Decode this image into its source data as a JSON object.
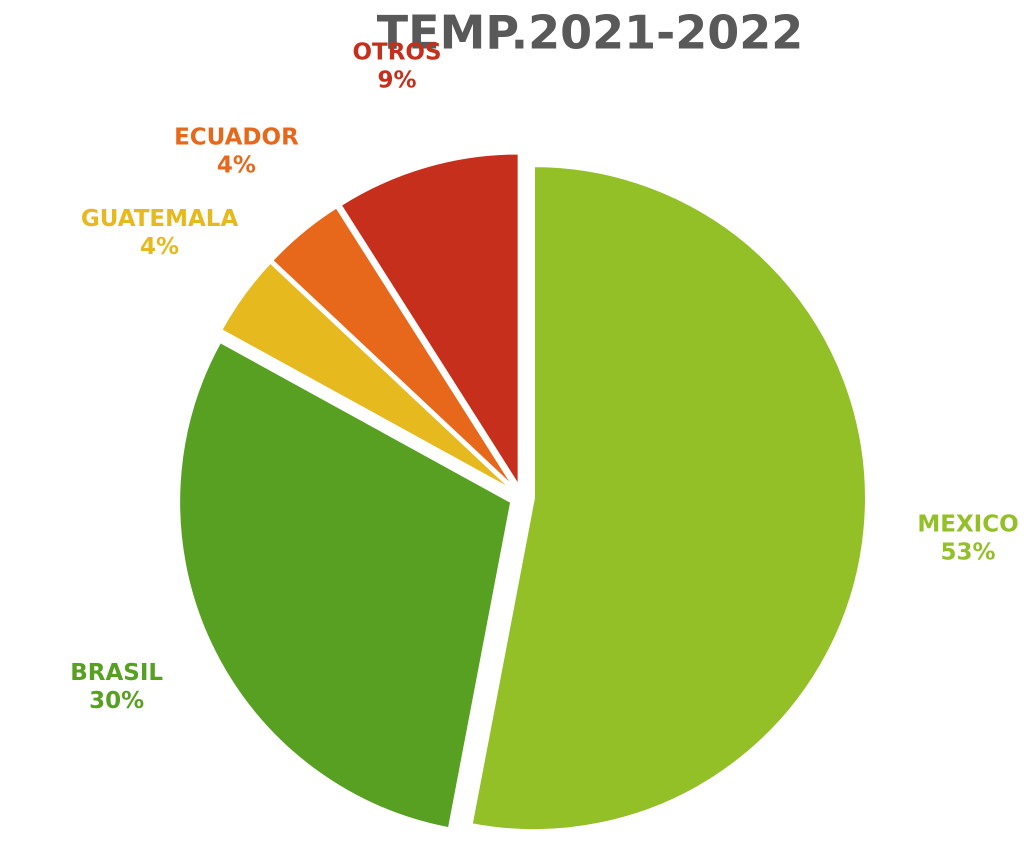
{
  "chart_data": {
    "type": "pie",
    "title": "TEMP.2021-2022",
    "categories": [
      "MEXICO",
      "BRASIL",
      "GUATEMALA",
      "ECUADOR",
      "OTROS"
    ],
    "values": [
      53,
      30,
      4,
      4,
      9
    ],
    "value_labels": [
      "53%",
      "30%",
      "4%",
      "4%",
      "9%"
    ],
    "colors": [
      "#93c027",
      "#57a022",
      "#e6b91e",
      "#e8681b",
      "#c52f1b"
    ]
  }
}
